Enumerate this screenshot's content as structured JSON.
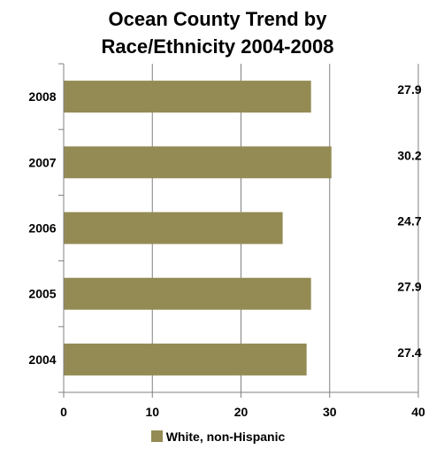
{
  "chart_data": {
    "type": "bar",
    "orientation": "horizontal",
    "title_lines": [
      "Ocean County Trend by",
      "Race/Ethnicity 2004-2008"
    ],
    "categories": [
      "2008",
      "2007",
      "2006",
      "2005",
      "2004"
    ],
    "series": [
      {
        "name": "White, non-Hispanic",
        "values": [
          27.9,
          30.2,
          24.7,
          27.9,
          27.4
        ],
        "color": "#948b54"
      }
    ],
    "data_labels": [
      "27.9",
      "30.2",
      "24.7",
      "27.9",
      "27.4"
    ],
    "xlim": [
      0,
      40
    ],
    "x_ticks": [
      "0",
      "10",
      "20",
      "30",
      "40"
    ],
    "grid": "vertical",
    "gridline_color": "#808080",
    "legend_position": "bottom"
  }
}
